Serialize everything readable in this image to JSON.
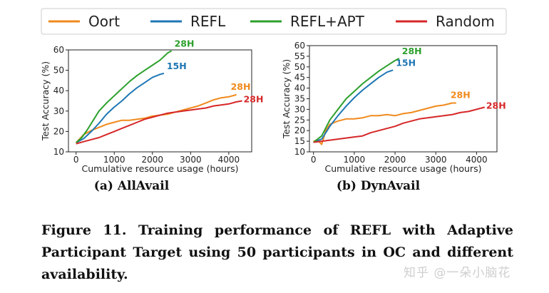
{
  "legend": [
    {
      "name": "Oort",
      "color": "#f08a1c"
    },
    {
      "name": "REFL",
      "color": "#1f77b4"
    },
    {
      "name": "REFL+APT",
      "color": "#2ca02c"
    },
    {
      "name": "Random",
      "color": "#d62728"
    }
  ],
  "chart_data": [
    {
      "type": "line",
      "title": "(a) AllAvail",
      "xlabel": "Cumulative resource usage (hours)",
      "ylabel": "Test Accuracy (%)",
      "xlim": [
        -200,
        4600
      ],
      "ylim": [
        10,
        60
      ],
      "xticks": [
        0,
        1000,
        2000,
        3000,
        4000
      ],
      "yticks": [
        10,
        20,
        30,
        40,
        50,
        60
      ],
      "series": [
        {
          "name": "Oort",
          "color": "#f08a1c",
          "label": "28H",
          "x": [
            0,
            200,
            400,
            600,
            800,
            1000,
            1200,
            1400,
            1600,
            1800,
            2000,
            2200,
            2400,
            2600,
            2800,
            3000,
            3200,
            3400,
            3600,
            3800,
            4000,
            4200
          ],
          "y": [
            14.5,
            18.5,
            20.5,
            22,
            23.5,
            24.5,
            25.5,
            25.5,
            26,
            26.5,
            27.5,
            28,
            28.5,
            29.5,
            30.5,
            31.5,
            32.5,
            34,
            35.5,
            36.5,
            37,
            38
          ]
        },
        {
          "name": "REFL",
          "color": "#1f77b4",
          "label": "15H",
          "x": [
            0,
            200,
            400,
            600,
            800,
            1000,
            1200,
            1400,
            1600,
            1800,
            2000,
            2200,
            2300
          ],
          "y": [
            14.5,
            16.5,
            20,
            24,
            28.5,
            32,
            35,
            38.5,
            41.5,
            44,
            46.5,
            48,
            48.5
          ]
        },
        {
          "name": "REFL+APT",
          "color": "#2ca02c",
          "label": "28H",
          "x": [
            0,
            150,
            300,
            450,
            600,
            800,
            1000,
            1200,
            1400,
            1600,
            1800,
            2000,
            2200,
            2400,
            2500
          ],
          "y": [
            14.5,
            17,
            21,
            25.5,
            30,
            34,
            37.5,
            41,
            44.5,
            47.5,
            50,
            52.5,
            55,
            58.5,
            59.5
          ]
        },
        {
          "name": "Random",
          "color": "#d62728",
          "label": "28H",
          "x": [
            0,
            200,
            400,
            600,
            800,
            1000,
            1200,
            1400,
            1600,
            1800,
            2000,
            2200,
            2400,
            2600,
            2800,
            3000,
            3200,
            3400,
            3600,
            3800,
            4000,
            4200,
            4350
          ],
          "y": [
            14,
            15,
            16,
            17,
            18.5,
            20,
            21.5,
            23,
            24.5,
            26,
            27,
            28,
            29,
            29.5,
            30,
            30.5,
            31,
            31.5,
            32.5,
            33,
            33.5,
            34.5,
            35
          ]
        }
      ]
    },
    {
      "type": "line",
      "title": "(b) DynAvail",
      "xlabel": "Cumulative resource usage (hours)",
      "ylabel": "Test Accuracy (%)",
      "xlim": [
        -100,
        4500
      ],
      "ylim": [
        10,
        60
      ],
      "xticks": [
        0,
        1000,
        2000,
        3000,
        4000
      ],
      "yticks": [
        10,
        15,
        20,
        25,
        30,
        35,
        40,
        45,
        50,
        55,
        60
      ],
      "series": [
        {
          "name": "Oort",
          "color": "#f08a1c",
          "label": "28H",
          "x": [
            0,
            100,
            200,
            300,
            400,
            600,
            800,
            1000,
            1200,
            1400,
            1600,
            1800,
            2000,
            2200,
            2400,
            2600,
            2800,
            3000,
            3200,
            3400,
            3500
          ],
          "y": [
            15,
            15.5,
            13.5,
            20,
            23,
            24.5,
            25.5,
            25.5,
            26,
            27,
            27,
            27.5,
            27,
            28,
            28.5,
            29.5,
            30.5,
            31.5,
            32,
            33,
            33
          ]
        },
        {
          "name": "REFL",
          "color": "#1f77b4",
          "label": "15H",
          "x": [
            0,
            200,
            400,
            600,
            800,
            1000,
            1200,
            1400,
            1600,
            1800,
            1950
          ],
          "y": [
            14.5,
            16,
            22,
            27,
            31.5,
            35.5,
            39,
            42,
            45,
            47.5,
            48.5
          ]
        },
        {
          "name": "REFL+APT",
          "color": "#2ca02c",
          "label": "28H",
          "x": [
            0,
            200,
            400,
            600,
            800,
            1000,
            1200,
            1400,
            1600,
            1800,
            2000,
            2100
          ],
          "y": [
            14.5,
            17.5,
            25,
            30,
            35,
            38.5,
            42,
            45,
            48,
            50.5,
            53,
            54
          ]
        },
        {
          "name": "Random",
          "color": "#d62728",
          "label": "28H",
          "x": [
            0,
            200,
            400,
            600,
            800,
            1000,
            1200,
            1400,
            1600,
            1800,
            2000,
            2200,
            2400,
            2600,
            2800,
            3000,
            3200,
            3400,
            3600,
            3800,
            4000,
            4200
          ],
          "y": [
            14.5,
            15,
            15.5,
            16,
            16.5,
            17,
            17.5,
            19,
            20,
            21,
            22,
            23.5,
            24.5,
            25.5,
            26,
            26.5,
            27,
            27.5,
            28.5,
            29,
            30,
            31
          ]
        }
      ]
    }
  ],
  "caption": "Figure 11. Training performance of REFL with Adaptive Participant Target using 50 participants in OC and different availability.",
  "watermark": "知乎 @一朵小脑花"
}
